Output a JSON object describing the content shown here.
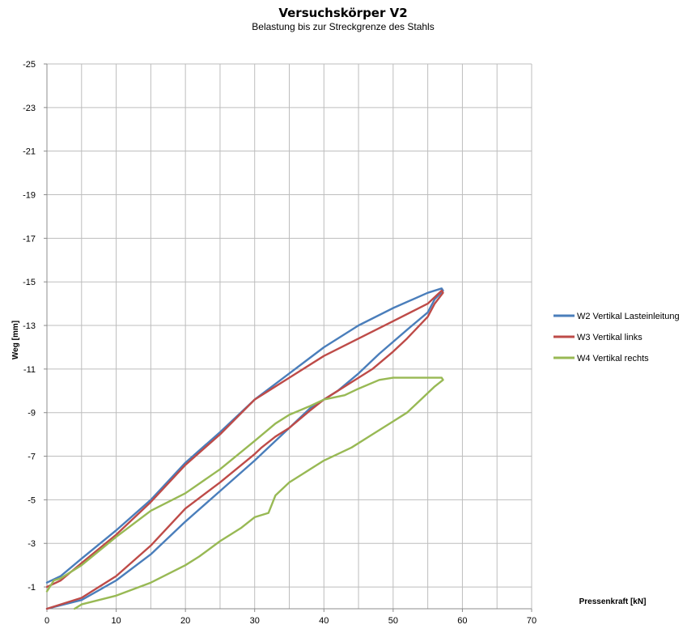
{
  "chart_data": {
    "type": "line",
    "title": "Versuchskörper V2",
    "subtitle": "Belastung bis zur Streckgrenze des Stahls",
    "xlabel": "Pressenkraft [kN]",
    "ylabel": "Weg [mm]",
    "xlim": [
      0,
      70
    ],
    "ylim": [
      0,
      -25
    ],
    "y_inverted": true,
    "x_ticks": [
      "0",
      "10",
      "20",
      "30",
      "40",
      "50",
      "60",
      "70"
    ],
    "y_ticks": [
      "-1",
      "-3",
      "-5",
      "-7",
      "-9",
      "-11",
      "-13",
      "-15",
      "-17",
      "-19",
      "-21",
      "-23",
      "-25"
    ],
    "grid": true,
    "legend_position": "right",
    "series": [
      {
        "name": "W2 Vertikal Lasteinleitung",
        "color": "#4a7ebb",
        "points": [
          [
            0,
            -1.2
          ],
          [
            2,
            -1.5
          ],
          [
            5,
            -2.3
          ],
          [
            10,
            -3.6
          ],
          [
            15,
            -5.0
          ],
          [
            20,
            -6.7
          ],
          [
            25,
            -8.1
          ],
          [
            30,
            -9.6
          ],
          [
            35,
            -10.8
          ],
          [
            40,
            -12.0
          ],
          [
            45,
            -13.0
          ],
          [
            50,
            -13.8
          ],
          [
            55,
            -14.5
          ],
          [
            57,
            -14.7
          ],
          [
            57.2,
            -14.6
          ],
          [
            56,
            -14.2
          ],
          [
            55,
            -13.6
          ],
          [
            52,
            -12.8
          ],
          [
            48,
            -11.7
          ],
          [
            45,
            -10.8
          ],
          [
            42,
            -10.0
          ],
          [
            38,
            -9.2
          ],
          [
            35,
            -8.3
          ],
          [
            32,
            -7.4
          ],
          [
            30,
            -6.8
          ],
          [
            25,
            -5.4
          ],
          [
            20,
            -4.0
          ],
          [
            15,
            -2.5
          ],
          [
            10,
            -1.3
          ],
          [
            5,
            -0.4
          ],
          [
            0,
            0
          ]
        ]
      },
      {
        "name": "W3 Vertikal links",
        "color": "#be4b48",
        "points": [
          [
            0,
            -1.0
          ],
          [
            2,
            -1.3
          ],
          [
            5,
            -2.1
          ],
          [
            10,
            -3.4
          ],
          [
            15,
            -4.9
          ],
          [
            20,
            -6.6
          ],
          [
            25,
            -8.0
          ],
          [
            30,
            -9.6
          ],
          [
            32,
            -10.0
          ],
          [
            35,
            -10.6
          ],
          [
            40,
            -11.6
          ],
          [
            45,
            -12.4
          ],
          [
            50,
            -13.2
          ],
          [
            55,
            -14.0
          ],
          [
            57,
            -14.6
          ],
          [
            57.2,
            -14.5
          ],
          [
            56,
            -14.0
          ],
          [
            55,
            -13.4
          ],
          [
            52,
            -12.4
          ],
          [
            50,
            -11.8
          ],
          [
            47,
            -11.0
          ],
          [
            45,
            -10.6
          ],
          [
            42,
            -10.0
          ],
          [
            40,
            -9.6
          ],
          [
            38,
            -9.1
          ],
          [
            35,
            -8.3
          ],
          [
            33,
            -7.9
          ],
          [
            31,
            -7.4
          ],
          [
            30,
            -7.1
          ],
          [
            25,
            -5.8
          ],
          [
            20,
            -4.6
          ],
          [
            15,
            -2.9
          ],
          [
            10,
            -1.5
          ],
          [
            5,
            -0.5
          ],
          [
            0,
            0
          ]
        ]
      },
      {
        "name": "W4 Vertikal rechts",
        "color": "#98b954",
        "points": [
          [
            0,
            -0.8
          ],
          [
            1,
            -1.3
          ],
          [
            2,
            -1.4
          ],
          [
            5,
            -2.0
          ],
          [
            10,
            -3.3
          ],
          [
            15,
            -4.5
          ],
          [
            20,
            -5.3
          ],
          [
            25,
            -6.4
          ],
          [
            30,
            -7.7
          ],
          [
            33,
            -8.5
          ],
          [
            35,
            -8.9
          ],
          [
            38,
            -9.3
          ],
          [
            40,
            -9.6
          ],
          [
            43,
            -9.8
          ],
          [
            45,
            -10.1
          ],
          [
            48,
            -10.5
          ],
          [
            50,
            -10.6
          ],
          [
            55,
            -10.6
          ],
          [
            57,
            -10.6
          ],
          [
            57.2,
            -10.5
          ],
          [
            56,
            -10.2
          ],
          [
            54,
            -9.6
          ],
          [
            52,
            -9.0
          ],
          [
            50,
            -8.6
          ],
          [
            47,
            -8.0
          ],
          [
            44,
            -7.4
          ],
          [
            40,
            -6.8
          ],
          [
            37,
            -6.2
          ],
          [
            35,
            -5.8
          ],
          [
            33,
            -5.2
          ],
          [
            32.5,
            -4.8
          ],
          [
            32,
            -4.4
          ],
          [
            30,
            -4.2
          ],
          [
            28,
            -3.7
          ],
          [
            25,
            -3.1
          ],
          [
            22,
            -2.4
          ],
          [
            20,
            -2.0
          ],
          [
            15,
            -1.2
          ],
          [
            10,
            -0.6
          ],
          [
            5,
            -0.2
          ],
          [
            4,
            0
          ]
        ]
      }
    ]
  }
}
